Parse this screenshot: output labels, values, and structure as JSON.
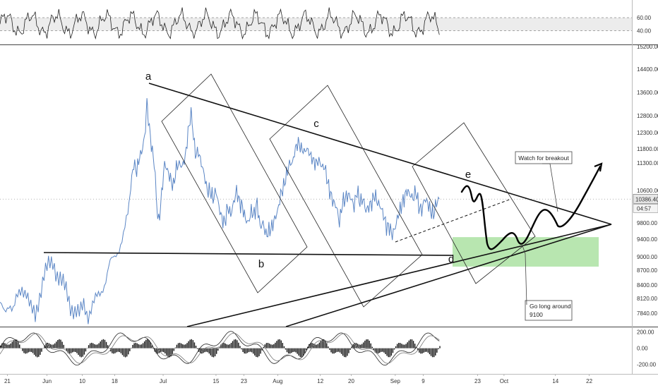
{
  "chart_data": {
    "type": "line",
    "panels": {
      "rsi": {
        "levels": [
          60.0,
          40.0
        ],
        "ylim": [
          20,
          85
        ]
      },
      "price": {
        "y_ticks": [
          15200,
          14400,
          13600,
          12800,
          12300,
          11800,
          11300,
          10600,
          9800,
          9400,
          9000,
          8700,
          8400,
          8120,
          7840
        ],
        "y_tick_labels": [
          "15200.00",
          "14400.00",
          "13600.00",
          "12800.00",
          "12300.00",
          "11800.00",
          "11300.00",
          "10600.00",
          "9800.00",
          "9400.00",
          "9000.00",
          "8700.00",
          "8400.00",
          "8120.00",
          "7840.00"
        ],
        "last_price": "10386.40",
        "countdown": "04:57",
        "series": [
          {
            "values": [
              [
                0,
                7960
              ],
              [
                3,
                7900
              ],
              [
                6,
                8050
              ],
              [
                9,
                7870
              ],
              [
                12,
                8150
              ],
              [
                15,
                8350
              ],
              [
                18,
                8250
              ],
              [
                21,
                7900
              ],
              [
                24,
                7780
              ],
              [
                27,
                8200
              ],
              [
                30,
                8600
              ],
              [
                33,
                8800
              ],
              [
                36,
                8900
              ],
              [
                39,
                8600
              ],
              [
                42,
                8450
              ],
              [
                45,
                8300
              ],
              [
                48,
                8000
              ],
              [
                51,
                7860
              ],
              [
                54,
                7800
              ],
              [
                57,
                8050
              ],
              [
                60,
                7800
              ],
              [
                63,
                7950
              ],
              [
                66,
                8150
              ],
              [
                69,
                8300
              ],
              [
                72,
                8500
              ],
              [
                75,
                8850
              ],
              [
                78,
                9000
              ],
              [
                81,
                9200
              ],
              [
                84,
                9500
              ],
              [
                87,
                10000
              ],
              [
                89,
                10700
              ],
              [
                91,
                11300
              ],
              [
                93,
                11100
              ],
              [
                95,
                11500
              ],
              [
                97,
                11800
              ],
              [
                99,
                12400
              ],
              [
                100,
                13300
              ],
              [
                101,
                12700
              ],
              [
                103,
                11900
              ],
              [
                105,
                11300
              ],
              [
                107,
                10100
              ],
              [
                108,
                9800
              ],
              [
                110,
                10500
              ],
              [
                112,
                11300
              ],
              [
                114,
                11100
              ],
              [
                116,
                10900
              ],
              [
                118,
                10700
              ],
              [
                120,
                11200
              ],
              [
                122,
                11300
              ],
              [
                124,
                11200
              ],
              [
                126,
                11500
              ],
              [
                128,
                12300
              ],
              [
                130,
                12900
              ],
              [
                131,
                12500
              ],
              [
                133,
                11600
              ],
              [
                135,
                11700
              ],
              [
                137,
                11300
              ],
              [
                139,
                11000
              ],
              [
                141,
                10600
              ],
              [
                143,
                10600
              ],
              [
                145,
                10400
              ],
              [
                147,
                10600
              ],
              [
                149,
                10200
              ],
              [
                151,
                9900
              ],
              [
                153,
                9800
              ],
              [
                155,
                10200
              ],
              [
                157,
                10000
              ],
              [
                159,
                10300
              ],
              [
                161,
                10600
              ],
              [
                163,
                10300
              ],
              [
                165,
                10200
              ],
              [
                167,
                9900
              ],
              [
                169,
                9800
              ],
              [
                171,
                10100
              ],
              [
                173,
                10000
              ],
              [
                175,
                10300
              ],
              [
                177,
                9700
              ],
              [
                179,
                9800
              ],
              [
                181,
                9500
              ],
              [
                183,
                9600
              ],
              [
                185,
                9700
              ],
              [
                187,
                9900
              ],
              [
                189,
                10100
              ],
              [
                191,
                10500
              ],
              [
                193,
                10700
              ],
              [
                195,
                11000
              ],
              [
                197,
                11300
              ],
              [
                199,
                11300
              ],
              [
                201,
                11800
              ],
              [
                203,
                12000
              ],
              [
                205,
                11800
              ],
              [
                207,
                11700
              ],
              [
                209,
                11800
              ],
              [
                211,
                11600
              ],
              [
                213,
                11400
              ],
              [
                215,
                11300
              ],
              [
                217,
                11400
              ],
              [
                219,
                11200
              ],
              [
                221,
                11200
              ],
              [
                223,
                10800
              ],
              [
                225,
                10500
              ],
              [
                227,
                10300
              ],
              [
                229,
                10200
              ],
              [
                231,
                9800
              ],
              [
                233,
                10300
              ],
              [
                235,
                10400
              ],
              [
                237,
                10500
              ],
              [
                239,
                10400
              ],
              [
                241,
                10200
              ],
              [
                243,
                10600
              ],
              [
                245,
                10300
              ],
              [
                247,
                10400
              ],
              [
                249,
                10100
              ],
              [
                251,
                10200
              ],
              [
                253,
                10300
              ],
              [
                255,
                10500
              ],
              [
                257,
                10300
              ],
              [
                259,
                10200
              ],
              [
                261,
                10000
              ],
              [
                263,
                9700
              ],
              [
                265,
                9700
              ],
              [
                267,
                9500
              ],
              [
                269,
                9700
              ],
              [
                271,
                10000
              ],
              [
                273,
                10200
              ],
              [
                275,
                10400
              ],
              [
                277,
                10600
              ],
              [
                279,
                10500
              ],
              [
                281,
                10400
              ],
              [
                283,
                10600
              ],
              [
                285,
                10200
              ],
              [
                287,
                10100
              ],
              [
                289,
                10400
              ],
              [
                291,
                10300
              ],
              [
                293,
                10100
              ],
              [
                295,
                10000
              ],
              [
                297,
                10300
              ],
              [
                299,
                10386.4
              ]
            ]
          }
        ]
      },
      "macd": {
        "y_ticks": [
          200,
          0,
          -200
        ],
        "y_tick_labels": [
          "200.00",
          "0.00",
          "-200.00"
        ],
        "ylim": [
          -300,
          250
        ]
      }
    },
    "x_tick_labels": [
      "21",
      "Jun",
      "10",
      "18",
      "Jul",
      "15",
      "23",
      "Aug",
      "12",
      "20",
      "Sep",
      "9",
      "23",
      "Oct",
      "14",
      "22"
    ],
    "x_ticks": [
      5,
      32,
      56,
      78,
      111,
      147,
      166,
      189,
      218,
      239,
      269,
      288,
      325,
      343,
      378,
      401
    ],
    "x_domain": [
      0,
      430
    ],
    "annotations": {
      "wave_labels": [
        "a",
        "b",
        "c",
        "d",
        "e"
      ],
      "notes": [
        {
          "text": "Watch for breakout"
        },
        {
          "lines": [
            "Go long around",
            "9100"
          ]
        }
      ]
    },
    "colors": {
      "price": "#5b86c5",
      "support_zone": "#b8e6b0",
      "rsi_band": "#ececec",
      "macd_bars": "#111111"
    }
  }
}
